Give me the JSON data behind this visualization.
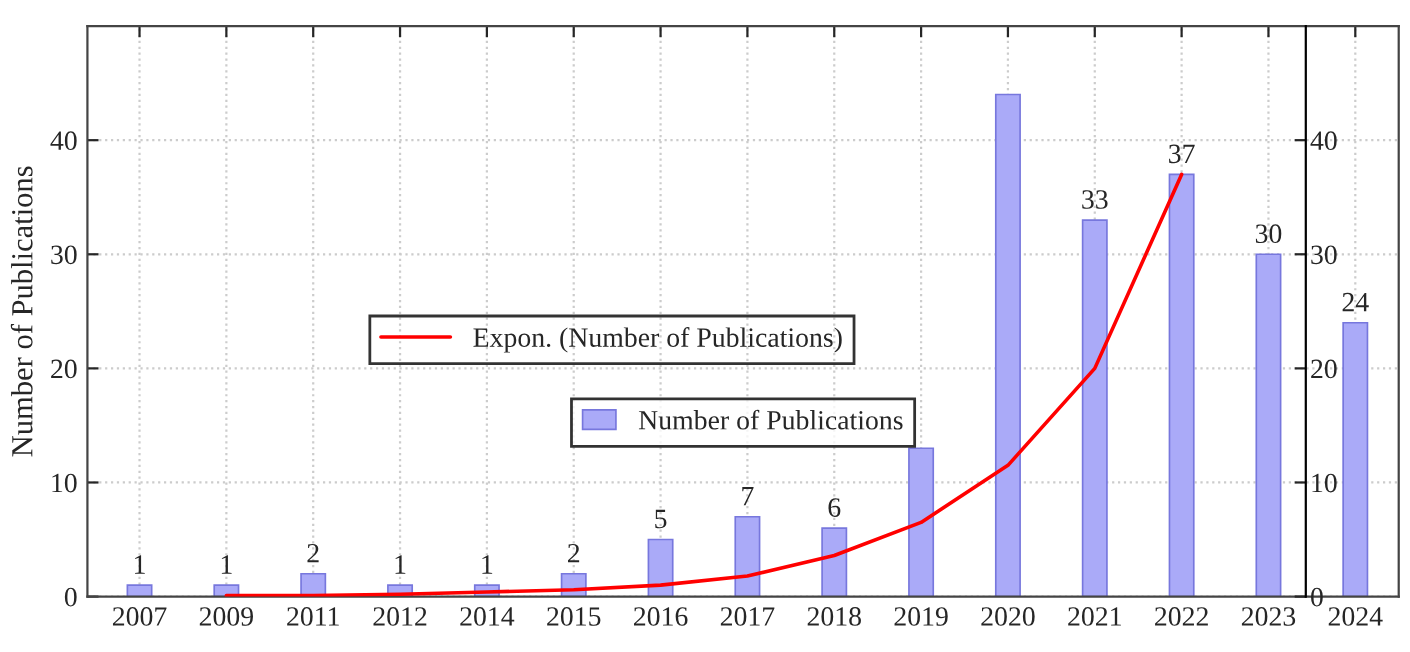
{
  "chart_data": {
    "type": "bar",
    "ylabel": "Number of Publications",
    "categories": [
      "2007",
      "2009",
      "2011",
      "2012",
      "2014",
      "2015",
      "2016",
      "2017",
      "2018",
      "2019",
      "2020",
      "2021",
      "2022",
      "2023",
      "2024"
    ],
    "series": [
      {
        "name": "Number of Publications",
        "color": "#aaaaf8",
        "values": [
          1,
          1,
          2,
          1,
          1,
          2,
          5,
          7,
          6,
          13,
          44,
          33,
          37,
          30,
          24
        ],
        "value_labels": [
          "1",
          "1",
          "2",
          "1",
          "1",
          "2",
          "5",
          "7",
          "6",
          null,
          null,
          "33",
          "37",
          "30",
          "24"
        ]
      },
      {
        "type": "line",
        "name": "Expon. (Number of Publications)",
        "color": "#ff0000",
        "values": [
          null,
          0.1,
          0.1,
          0.2,
          0.4,
          0.6,
          1,
          1.8,
          3.6,
          6.5,
          11.5,
          20,
          37,
          null,
          null
        ]
      }
    ],
    "ylim": [
      0,
      50
    ],
    "yticks": [
      0,
      10,
      20,
      30,
      40
    ],
    "y2lim": [
      0,
      50
    ],
    "y2ticks": [
      0,
      10,
      20,
      30,
      40
    ],
    "grid": true,
    "legend": "center"
  }
}
